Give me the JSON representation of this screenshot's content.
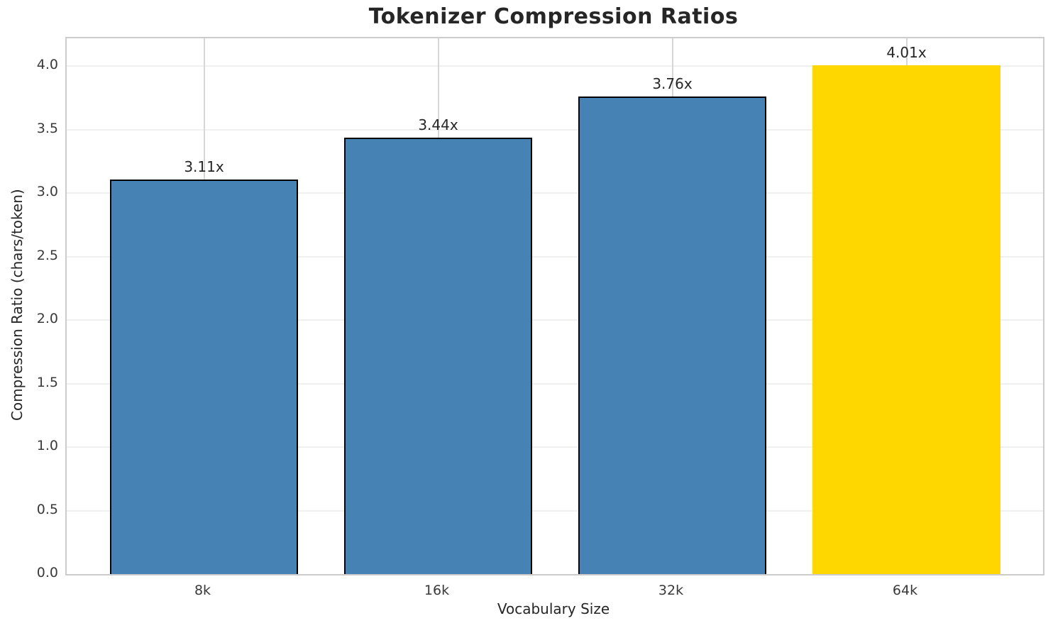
{
  "chart_data": {
    "type": "bar",
    "title": "Tokenizer Compression Ratios",
    "xlabel": "Vocabulary Size",
    "ylabel": "Compression Ratio (chars/token)",
    "categories": [
      "8k",
      "16k",
      "32k",
      "64k"
    ],
    "values": [
      3.11,
      3.44,
      3.76,
      4.01
    ],
    "bar_labels": [
      "3.11x",
      "3.44x",
      "3.76x",
      "4.01x"
    ],
    "bar_colors": [
      "#4682B4",
      "#4682B4",
      "#4682B4",
      "#FFD700"
    ],
    "bar_edges": [
      true,
      true,
      true,
      false
    ],
    "highlight_color": "#FFD700",
    "base_color": "#4682B4",
    "edge_color": "#000000",
    "ylim": [
      0,
      4.22
    ],
    "yticks": [
      0.0,
      0.5,
      1.0,
      1.5,
      2.0,
      2.5,
      3.0,
      3.5,
      4.0
    ],
    "ytick_labels": [
      "0.0",
      "0.5",
      "1.0",
      "1.5",
      "2.0",
      "2.5",
      "3.0",
      "3.5",
      "4.0"
    ],
    "grid": true,
    "legend_position": "none",
    "plot_border_color": "#cccccc",
    "vgrid_color": "#d6d6d6",
    "hgrid_color": "#f0f0f0",
    "text_color": "#262626"
  }
}
